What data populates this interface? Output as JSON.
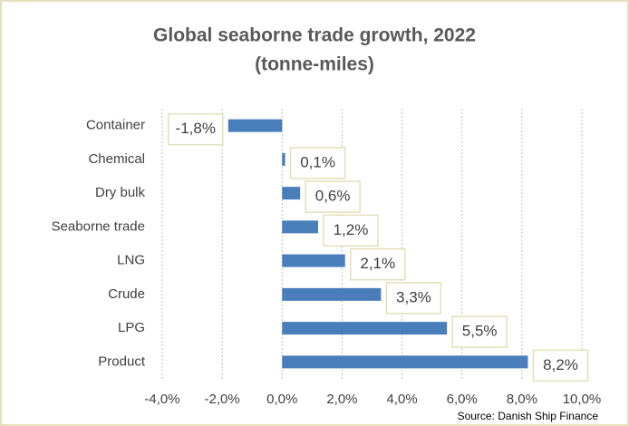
{
  "chart_data": {
    "type": "bar",
    "orientation": "horizontal",
    "title": "Global seaborne trade growth, 2022",
    "subtitle": "(tonne-miles)",
    "source": "Source: Danish Ship Finance",
    "categories": [
      "Container",
      "Chemical",
      "Dry bulk",
      "Seaborne trade",
      "LNG",
      "Crude",
      "LPG",
      "Product"
    ],
    "values": [
      -1.8,
      0.1,
      0.6,
      1.2,
      2.1,
      3.3,
      5.5,
      8.2
    ],
    "value_labels": [
      "-1,8%",
      "0,1%",
      "0,6%",
      "1,2%",
      "2,1%",
      "3,3%",
      "5,5%",
      "8,2%"
    ],
    "color": "#4a7ebb",
    "xlim": [
      -4,
      10
    ],
    "xticks": [
      {
        "value": -4,
        "label": "-4,0%"
      },
      {
        "value": -2,
        "label": "-2,0%"
      },
      {
        "value": 0,
        "label": "0,0%"
      },
      {
        "value": 2,
        "label": "2,0%"
      },
      {
        "value": 4,
        "label": "4,0%"
      },
      {
        "value": 6,
        "label": "6,0%"
      },
      {
        "value": 8,
        "label": "8,0%"
      },
      {
        "value": 10,
        "label": "10,0%"
      }
    ],
    "grid": true
  }
}
